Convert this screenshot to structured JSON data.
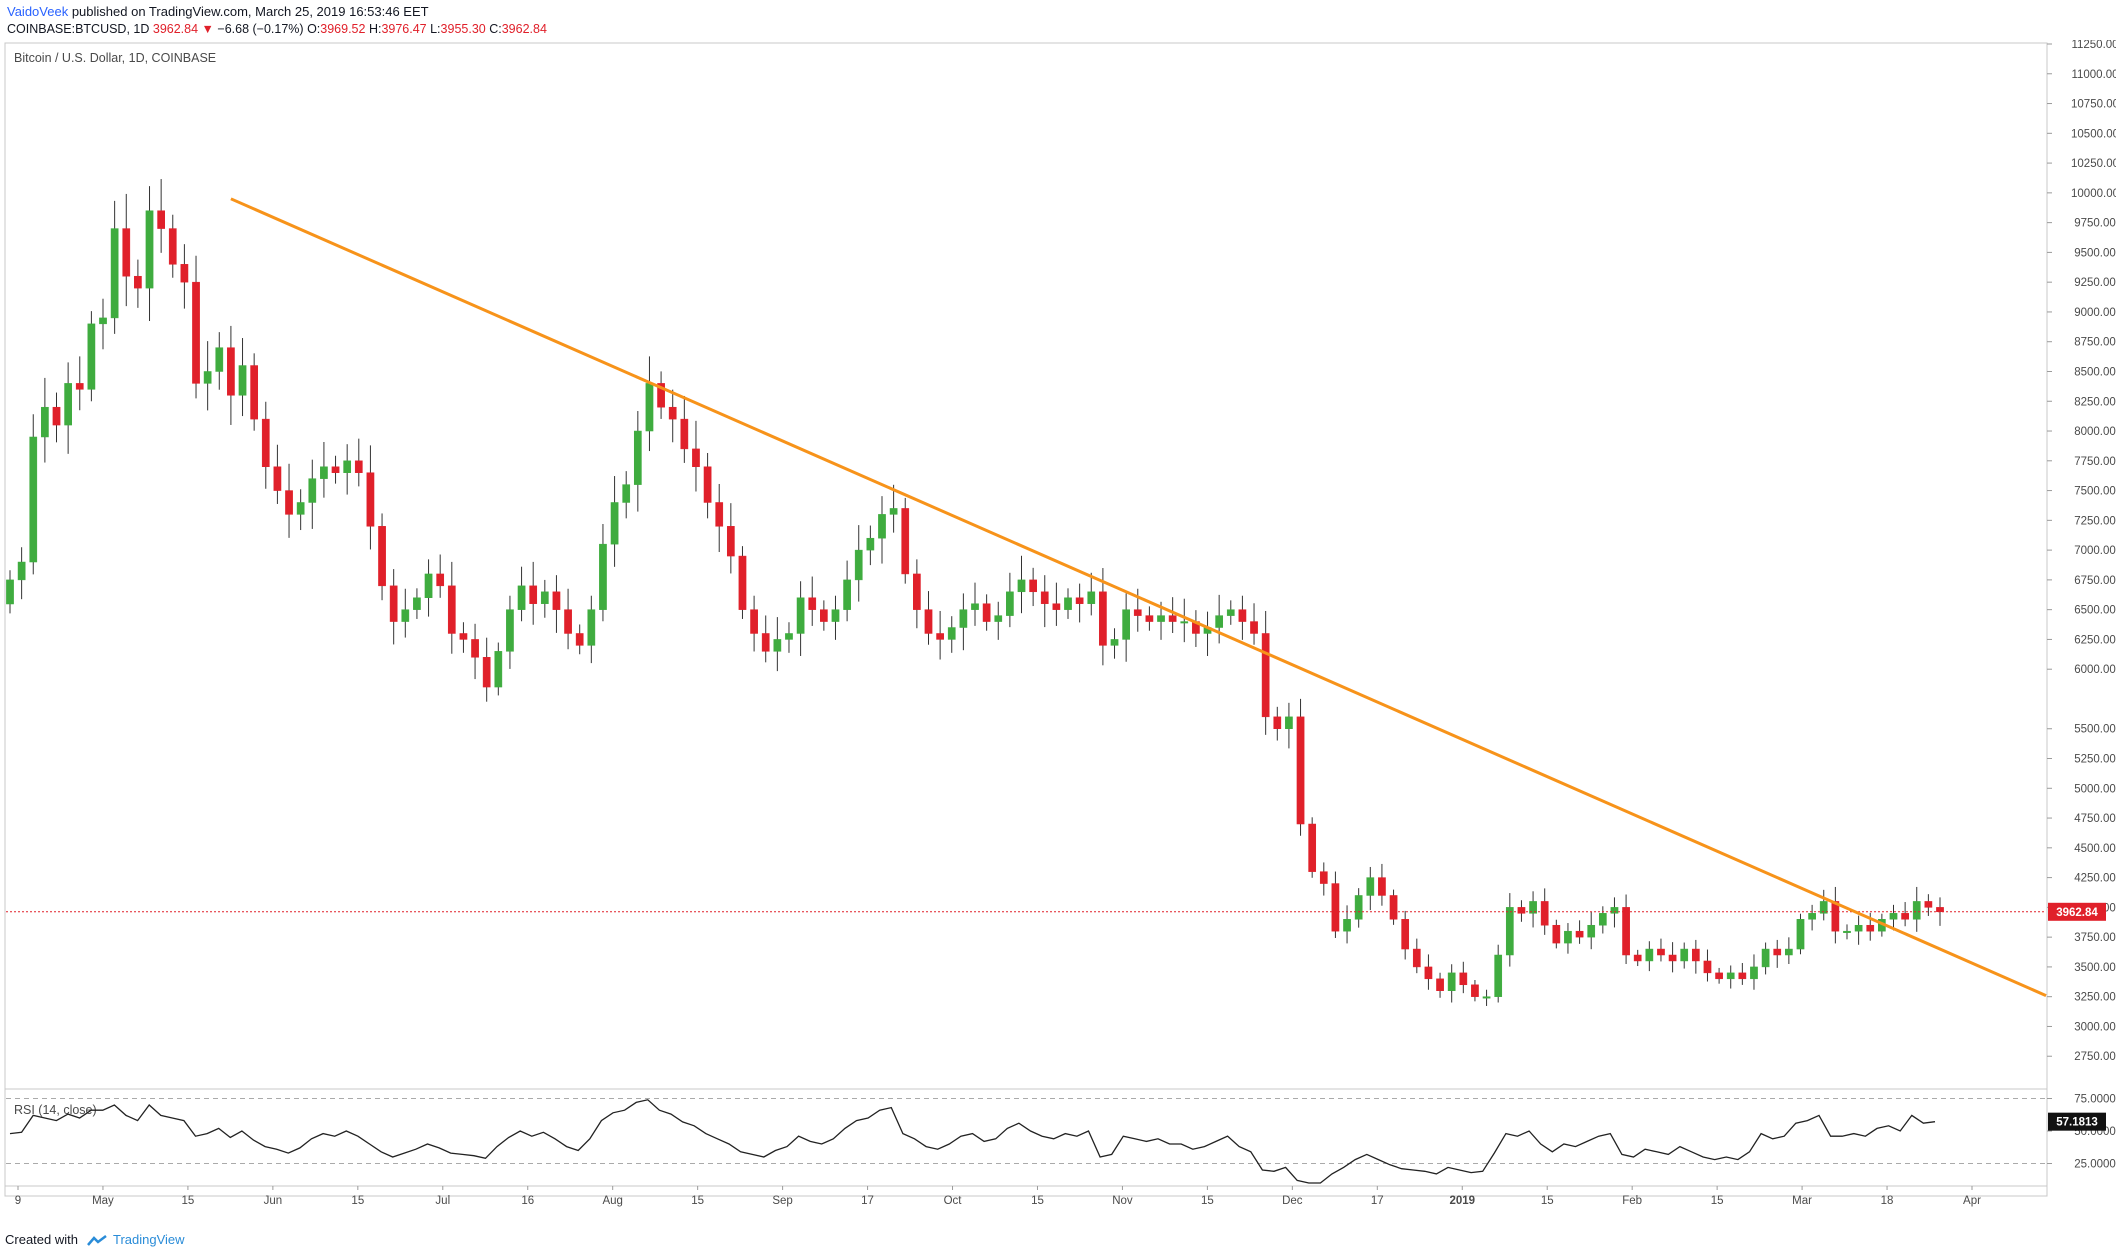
{
  "header": {
    "author": "VaidoVeek",
    "published": "published on TradingView.com, March 25, 2019 16:53:46 EET",
    "symbol": "COINBASE:BTCUSD, 1D",
    "last": "3962.84",
    "change_arrow": "▼",
    "change": "−6.68 (−0.17%)",
    "open_label": "O:",
    "open": "3969.52",
    "high_label": "H:",
    "high": "3976.47",
    "low_label": "L:",
    "low": "3955.30",
    "close_label": "C:",
    "close": "3962.84"
  },
  "colors": {
    "up": "#3fac3f",
    "down": "#e0202a",
    "trendline": "#f7931a",
    "rsi_line": "#222222",
    "price_line": "#e0202a"
  },
  "chart_data": [
    {
      "type": "candlestick",
      "title": "Bitcoin / U.S. Dollar, 1D, COINBASE",
      "ylim": [
        2500,
        11250
      ],
      "y_ticks": [
        "2750.00",
        "3000.00",
        "3250.00",
        "3500.00",
        "3750.00",
        "4000.00",
        "4250.00",
        "4500.00",
        "4750.00",
        "5000.00",
        "5250.00",
        "5500.00",
        "6000.00",
        "6250.00",
        "6500.00",
        "6750.00",
        "7000.00",
        "7250.00",
        "7500.00",
        "7750.00",
        "8000.00",
        "8250.00",
        "8500.00",
        "8750.00",
        "9000.00",
        "9250.00",
        "9500.00",
        "9750.00",
        "10000.00",
        "10250.00",
        "10500.00",
        "10750.00",
        "11000.00",
        "11250.00"
      ],
      "x_ticks": [
        "9",
        "May",
        "15",
        "Jun",
        "15",
        "Jul",
        "16",
        "Aug",
        "15",
        "Sep",
        "17",
        "Oct",
        "15",
        "Nov",
        "15",
        "Dec",
        "17",
        "2019",
        "15",
        "Feb",
        "15",
        "Mar",
        "18",
        "Apr"
      ],
      "last_price_label": "3962.84",
      "series": [
        {
          "name": "close",
          "values": [
            6750,
            6900,
            7950,
            8200,
            8050,
            8400,
            8350,
            8900,
            8950,
            9700,
            9300,
            9200,
            9850,
            9700,
            9400,
            9250,
            8400,
            8500,
            8700,
            8300,
            8550,
            8100,
            7700,
            7500,
            7300,
            7400,
            7600,
            7700,
            7650,
            7750,
            7650,
            7200,
            6700,
            6400,
            6500,
            6600,
            6800,
            6700,
            6300,
            6250,
            6100,
            5850,
            6150,
            6500,
            6700,
            6550,
            6650,
            6500,
            6300,
            6200,
            6500,
            7050,
            7400,
            7550,
            8000,
            8400,
            8200,
            8100,
            7850,
            7700,
            7400,
            7200,
            6950,
            6500,
            6300,
            6150,
            6250,
            6300,
            6600,
            6500,
            6400,
            6500,
            6750,
            7000,
            7100,
            7300,
            7350,
            6800,
            6500,
            6300,
            6250,
            6350,
            6500,
            6550,
            6400,
            6450,
            6650,
            6750,
            6650,
            6550,
            6500,
            6600,
            6550,
            6650,
            6200,
            6250,
            6500,
            6450,
            6400,
            6450,
            6400,
            6400,
            6300,
            6350,
            6450,
            6500,
            6400,
            6300,
            5600,
            5500,
            5600,
            4700,
            4300,
            4200,
            3800,
            3900,
            4100,
            4250,
            4100,
            3900,
            3650,
            3500,
            3400,
            3300,
            3450,
            3350,
            3250,
            3250,
            3600,
            4000,
            3950,
            4050,
            3850,
            3700,
            3800,
            3750,
            3850,
            3950,
            4000,
            3600,
            3550,
            3650,
            3600,
            3550,
            3650,
            3550,
            3450,
            3400,
            3450,
            3400,
            3500,
            3650,
            3600,
            3650,
            3900,
            3950,
            4050,
            3800,
            3800,
            3850,
            3800,
            3900,
            3950,
            3900,
            4050,
            4000,
            3963
          ]
        },
        {
          "name": "trendline",
          "values": [
            9950,
            3650
          ]
        }
      ]
    },
    {
      "type": "line",
      "title": "RSI (14, close)",
      "ylim": [
        10,
        80
      ],
      "y_ticks": [
        "25.0000",
        "50.0000",
        "75.0000"
      ],
      "last_value_label": "57.1813",
      "series": [
        {
          "name": "RSI",
          "values": [
            48,
            49,
            62,
            60,
            58,
            63,
            60,
            66,
            66,
            70,
            62,
            58,
            70,
            62,
            60,
            58,
            46,
            48,
            52,
            45,
            50,
            43,
            38,
            36,
            33,
            37,
            44,
            48,
            46,
            50,
            46,
            40,
            34,
            30,
            33,
            36,
            40,
            37,
            33,
            32,
            31,
            29,
            38,
            45,
            50,
            46,
            49,
            44,
            38,
            35,
            44,
            58,
            64,
            66,
            72,
            74,
            66,
            63,
            57,
            54,
            48,
            44,
            40,
            34,
            32,
            30,
            35,
            38,
            46,
            42,
            40,
            44,
            52,
            58,
            60,
            66,
            68,
            48,
            44,
            38,
            36,
            40,
            46,
            48,
            42,
            44,
            52,
            56,
            50,
            46,
            44,
            48,
            46,
            50,
            30,
            32,
            46,
            44,
            42,
            44,
            40,
            40,
            36,
            38,
            42,
            46,
            38,
            34,
            20,
            19,
            22,
            12,
            10,
            10,
            17,
            22,
            28,
            32,
            28,
            24,
            21,
            20,
            19,
            17,
            22,
            20,
            18,
            19,
            33,
            48,
            46,
            50,
            40,
            34,
            40,
            38,
            42,
            46,
            48,
            32,
            30,
            36,
            34,
            32,
            38,
            34,
            30,
            28,
            30,
            28,
            34,
            48,
            44,
            46,
            56,
            58,
            62,
            46,
            46,
            48,
            46,
            52,
            54,
            50,
            62,
            56,
            57.18
          ]
        }
      ]
    }
  ],
  "footer": {
    "created_with": "Created with",
    "brand": "TradingView"
  }
}
